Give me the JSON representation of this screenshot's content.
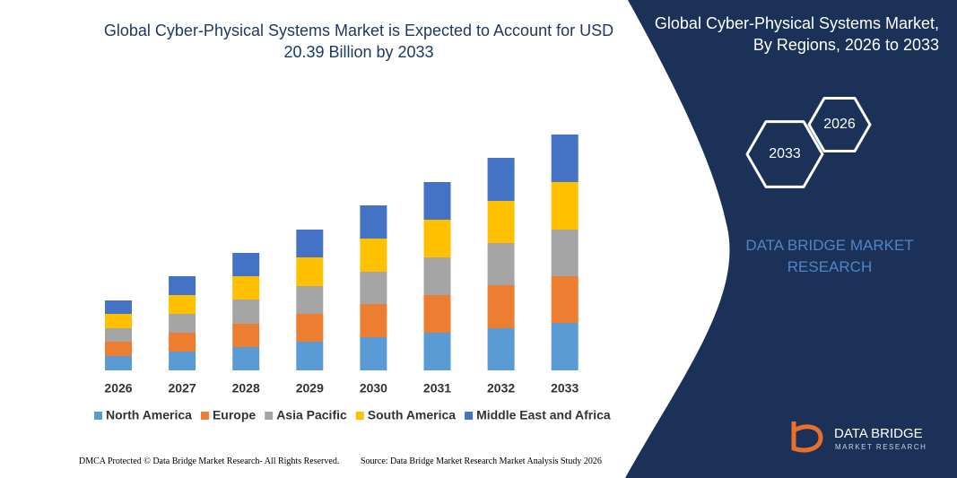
{
  "chart_data": {
    "type": "bar",
    "stacked": true,
    "title": "Global Cyber-Physical Systems Market is Expected to Account for USD 20.39 Billion by 2033",
    "categories": [
      "2026",
      "2027",
      "2028",
      "2029",
      "2030",
      "2031",
      "2032",
      "2033"
    ],
    "series": [
      {
        "name": "North America",
        "color": "#5b9bd5",
        "values": [
          16,
          21,
          26,
          32,
          37,
          42,
          47,
          53
        ]
      },
      {
        "name": "Europe",
        "color": "#ed7d31",
        "values": [
          16,
          21,
          26,
          31,
          37,
          42,
          48,
          52
        ]
      },
      {
        "name": "Asia Pacific",
        "color": "#a5a5a5",
        "values": [
          15,
          21,
          27,
          31,
          36,
          42,
          47,
          52
        ]
      },
      {
        "name": "South America",
        "color": "#ffc000",
        "values": [
          16,
          21,
          26,
          32,
          37,
          42,
          47,
          53
        ]
      },
      {
        "name": "Middle East and Africa",
        "color": "#4472c4",
        "values": [
          15,
          21,
          26,
          31,
          37,
          42,
          48,
          53
        ]
      }
    ]
  },
  "panel": {
    "title": "Global Cyber-Physical Systems Market, By Regions, 2026 to 2033",
    "hexagons": [
      "2026",
      "2033"
    ],
    "brand": "DATA BRIDGE MARKET RESEARCH"
  },
  "logo": {
    "name": "DATA BRIDGE",
    "tagline": "MARKET RESEARCH"
  },
  "footer": {
    "left": "DMCA Protected © Data Bridge Market Research- All Rights Reserved.",
    "right": "Source: Data Bridge Market Research Market Analysis Study 2026"
  }
}
